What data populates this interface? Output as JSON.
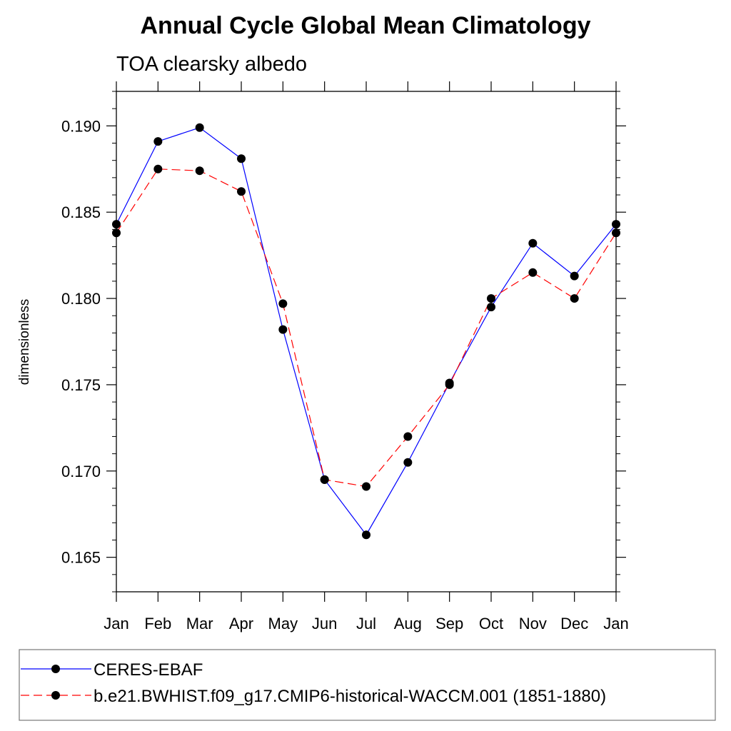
{
  "chart_data": {
    "type": "line",
    "title": "Annual Cycle Global Mean Climatology",
    "subtitle": "TOA clearsky albedo",
    "xlabel": "",
    "ylabel": "dimensionless",
    "categories": [
      "Jan",
      "Feb",
      "Mar",
      "Apr",
      "May",
      "Jun",
      "Jul",
      "Aug",
      "Sep",
      "Oct",
      "Nov",
      "Dec",
      "Jan"
    ],
    "ylim": [
      0.163,
      0.192
    ],
    "yticks": [
      "0.165",
      "0.170",
      "0.175",
      "0.180",
      "0.185",
      "0.190"
    ],
    "ytick_values": [
      0.165,
      0.17,
      0.175,
      0.18,
      0.185,
      0.19
    ],
    "y_minor_step": 0.001,
    "grid": false,
    "legend_position": "bottom",
    "series": [
      {
        "name": "CERES-EBAF",
        "color": "#0000ff",
        "dash": "solid",
        "marker": "filled-circle",
        "values": [
          0.1843,
          0.1891,
          0.1899,
          0.1881,
          0.1782,
          0.1695,
          0.1663,
          0.1705,
          0.1751,
          0.1795,
          0.1832,
          0.1813,
          0.1843
        ]
      },
      {
        "name": "b.e21.BWHIST.f09_g17.CMIP6-historical-WACCM.001 (1851-1880)",
        "color": "#ff0000",
        "dash": "dashed",
        "marker": "filled-circle",
        "values": [
          0.1838,
          0.1875,
          0.1874,
          0.1862,
          0.1797,
          0.1695,
          0.1691,
          0.172,
          0.175,
          0.18,
          0.1815,
          0.18,
          0.1838
        ]
      }
    ]
  }
}
